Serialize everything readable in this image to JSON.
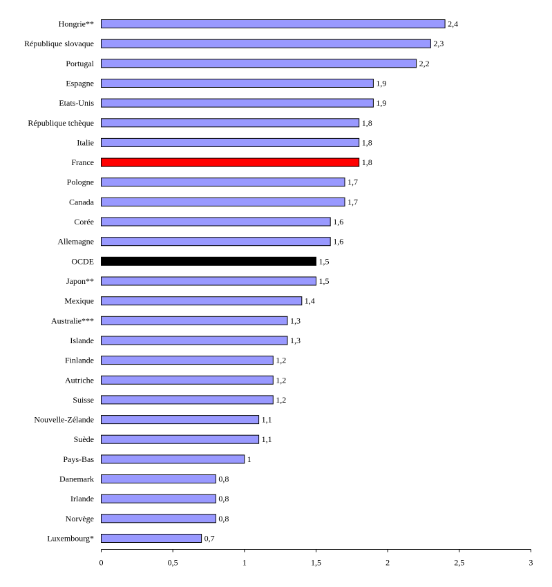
{
  "chart_data": {
    "type": "bar",
    "orientation": "horizontal",
    "title": "",
    "xlabel": "",
    "ylabel": "",
    "xlim": [
      0,
      3
    ],
    "x_ticks": [
      0,
      0.5,
      1,
      1.5,
      2,
      2.5,
      3
    ],
    "x_tick_labels": [
      "0",
      "0,5",
      "1",
      "1,5",
      "2",
      "2,5",
      "3"
    ],
    "grid": false,
    "legend": null,
    "colors": {
      "default": "#9999FF",
      "highlight": "#FF0000",
      "average": "#000000",
      "outline": "#000000"
    },
    "categories": [
      "Hongrie**",
      "République slovaque",
      "Portugal",
      "Espagne",
      "Etats-Unis",
      "République tchèque",
      "Italie",
      "France",
      "Pologne",
      "Canada",
      "Corée",
      "Allemagne",
      "OCDE",
      "Japon**",
      "Mexique",
      "Australie***",
      "Islande",
      "Finlande",
      "Autriche",
      "Suisse",
      "Nouvelle-Zélande",
      "Suède",
      "Pays-Bas",
      "Danemark",
      "Irlande",
      "Norvège",
      "Luxembourg*"
    ],
    "values": [
      2.4,
      2.3,
      2.2,
      1.9,
      1.9,
      1.8,
      1.8,
      1.8,
      1.7,
      1.7,
      1.6,
      1.6,
      1.5,
      1.5,
      1.4,
      1.3,
      1.3,
      1.2,
      1.2,
      1.2,
      1.1,
      1.1,
      1.0,
      0.8,
      0.8,
      0.8,
      0.7
    ],
    "value_labels": [
      "2,4",
      "2,3",
      "2,2",
      "1,9",
      "1,9",
      "1,8",
      "1,8",
      "1,8",
      "1,7",
      "1,7",
      "1,6",
      "1,6",
      "1,5",
      "1,5",
      "1,4",
      "1,3",
      "1,3",
      "1,2",
      "1,2",
      "1,2",
      "1,1",
      "1,1",
      "1",
      "0,8",
      "0,8",
      "0,8",
      "0,7"
    ],
    "bar_styles": [
      "default",
      "default",
      "default",
      "default",
      "default",
      "default",
      "default",
      "highlight",
      "default",
      "default",
      "default",
      "default",
      "average",
      "default",
      "default",
      "default",
      "default",
      "default",
      "default",
      "default",
      "default",
      "default",
      "default",
      "default",
      "default",
      "default",
      "default"
    ]
  }
}
